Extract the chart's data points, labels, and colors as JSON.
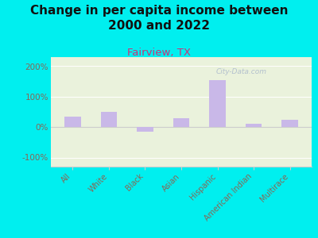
{
  "title": "Change in per capita income between\n2000 and 2022",
  "subtitle": "Fairview, TX",
  "categories": [
    "All",
    "White",
    "Black",
    "Asian",
    "Hispanic",
    "American Indian",
    "Multirace"
  ],
  "values": [
    35,
    50,
    -15,
    30,
    155,
    10,
    25
  ],
  "bar_color": "#c9b8e8",
  "background_color": "#00EFEF",
  "plot_bg_color": "#eaf2dc",
  "ylim": [
    -130,
    230
  ],
  "yticks": [
    -100,
    0,
    100,
    200
  ],
  "ytick_labels": [
    "-100%",
    "0%",
    "100%",
    "200%"
  ],
  "title_fontsize": 11,
  "subtitle_fontsize": 9.5,
  "subtitle_color": "#cc3377",
  "watermark": "City-Data.com",
  "watermark_color": "#aab8cc",
  "tick_color": "#886655",
  "axis_color": "#cccccc"
}
